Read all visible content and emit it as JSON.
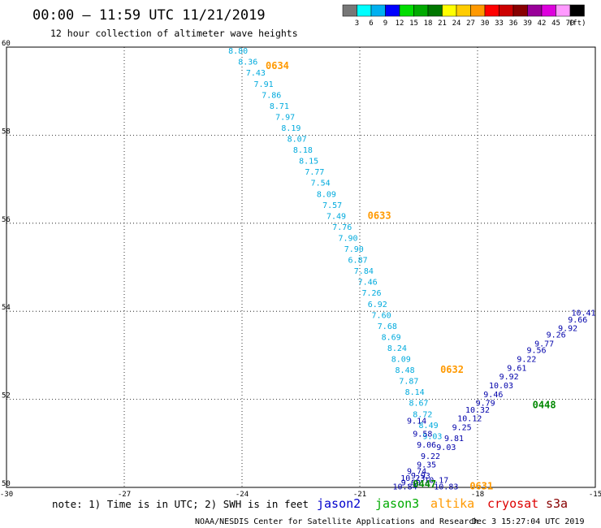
{
  "header": {
    "title": "00:00 – 11:59 UTC 11/21/2019",
    "subtitle": "12 hour collection of altimeter wave heights"
  },
  "colorbar": {
    "unit": "(ft)",
    "labels": [
      "3",
      "6",
      "9",
      "12",
      "15",
      "18",
      "21",
      "24",
      "27",
      "30",
      "33",
      "36",
      "39",
      "42",
      "45",
      "70"
    ],
    "colors": [
      "#777777",
      "#00ffff",
      "#00b0f0",
      "#0000ff",
      "#00dd00",
      "#00aa00",
      "#007700",
      "#ffff00",
      "#ffcc00",
      "#ff9900",
      "#ff0000",
      "#cc0000",
      "#880000",
      "#990099",
      "#dd00dd",
      "#ff99ff",
      "#000000"
    ]
  },
  "footer": {
    "note": "note: 1) Time is in UTC; 2) SWH is in feet",
    "satellites": [
      {
        "name": "jason2",
        "color": "#0000cc"
      },
      {
        "name": "jason3",
        "color": "#00aa00"
      },
      {
        "name": "altika",
        "color": "#ff9900"
      },
      {
        "name": "cryosat",
        "color": "#dd0000"
      },
      {
        "name": "s3a",
        "color": "#880000"
      }
    ],
    "credit": "NOAA/NESDIS Center for Satellite Applications and Research",
    "timestamp": "Dec  3 15:27:04 UTC 2019"
  },
  "chart_data": {
    "type": "scatter",
    "xlim": [
      -30,
      -15
    ],
    "ylim": [
      50,
      60
    ],
    "x_ticks": [
      "-30",
      "-27",
      "-24",
      "-21",
      "-18",
      "-15"
    ],
    "y_ticks": [
      "50",
      "52",
      "54",
      "56",
      "58",
      "60"
    ],
    "grid": "dotted",
    "colors": {
      "track_a": "#00aadd",
      "track_b": "#0000aa",
      "time_altika": "#ff9900",
      "time_jason3": "#008800"
    },
    "tracks": [
      {
        "color_key": "track_a",
        "points": [
          {
            "x": -24.1,
            "y": 59.85,
            "v": "8.80"
          },
          {
            "x": -23.85,
            "y": 59.6,
            "v": "8.36"
          },
          {
            "x": -23.65,
            "y": 59.35,
            "v": "7.43"
          },
          {
            "x": -23.45,
            "y": 59.1,
            "v": "7.91"
          },
          {
            "x": -23.25,
            "y": 58.85,
            "v": "7.86"
          },
          {
            "x": -23.05,
            "y": 58.6,
            "v": "8.71"
          },
          {
            "x": -22.9,
            "y": 58.35,
            "v": "7.97"
          },
          {
            "x": -22.75,
            "y": 58.1,
            "v": "8.19"
          },
          {
            "x": -22.6,
            "y": 57.85,
            "v": "8.07"
          },
          {
            "x": -22.45,
            "y": 57.6,
            "v": "8.18"
          },
          {
            "x": -22.3,
            "y": 57.35,
            "v": "8.15"
          },
          {
            "x": -22.15,
            "y": 57.1,
            "v": "7.77"
          },
          {
            "x": -22.0,
            "y": 56.85,
            "v": "7.54"
          },
          {
            "x": -21.85,
            "y": 56.6,
            "v": "8.09"
          },
          {
            "x": -21.7,
            "y": 56.35,
            "v": "7.57"
          },
          {
            "x": -21.6,
            "y": 56.1,
            "v": "7.49"
          },
          {
            "x": -21.45,
            "y": 55.85,
            "v": "7.76"
          },
          {
            "x": -21.3,
            "y": 55.6,
            "v": "7.90"
          },
          {
            "x": -21.15,
            "y": 55.35,
            "v": "7.90"
          },
          {
            "x": -21.05,
            "y": 55.1,
            "v": "6.87"
          },
          {
            "x": -20.9,
            "y": 54.85,
            "v": "7.84"
          },
          {
            "x": -20.8,
            "y": 54.6,
            "v": "7.46"
          },
          {
            "x": -20.7,
            "y": 54.35,
            "v": "7.26"
          },
          {
            "x": -20.55,
            "y": 54.1,
            "v": "6.92"
          },
          {
            "x": -20.45,
            "y": 53.85,
            "v": "7.60"
          },
          {
            "x": -20.3,
            "y": 53.6,
            "v": "7.68"
          },
          {
            "x": -20.2,
            "y": 53.35,
            "v": "8.69"
          },
          {
            "x": -20.05,
            "y": 53.1,
            "v": "8.24"
          },
          {
            "x": -19.95,
            "y": 52.85,
            "v": "8.09"
          },
          {
            "x": -19.85,
            "y": 52.6,
            "v": "8.48"
          },
          {
            "x": -19.75,
            "y": 52.35,
            "v": "7.87"
          },
          {
            "x": -19.6,
            "y": 52.1,
            "v": "8.14"
          },
          {
            "x": -19.5,
            "y": 51.85,
            "v": "8.67"
          },
          {
            "x": -19.4,
            "y": 51.6,
            "v": "8.72"
          },
          {
            "x": -19.25,
            "y": 51.35,
            "v": "8.49"
          },
          {
            "x": -19.15,
            "y": 51.1,
            "v": "9.03"
          }
        ]
      },
      {
        "color_key": "track_b",
        "points": [
          {
            "x": -19.55,
            "y": 51.45,
            "v": "9.14"
          },
          {
            "x": -19.4,
            "y": 51.15,
            "v": "9.58"
          },
          {
            "x": -19.3,
            "y": 50.9,
            "v": "9.06"
          },
          {
            "x": -19.2,
            "y": 50.65,
            "v": "9.22"
          },
          {
            "x": -19.3,
            "y": 50.45,
            "v": "9.35"
          },
          {
            "x": -19.55,
            "y": 50.3,
            "v": "9.74"
          },
          {
            "x": -19.45,
            "y": 50.2,
            "v": "9.93"
          },
          {
            "x": -19.65,
            "y": 50.15,
            "v": "10.23"
          },
          {
            "x": -19.05,
            "y": 50.1,
            "v": "10.17"
          },
          {
            "x": -19.7,
            "y": 50.05,
            "v": "9.60"
          },
          {
            "x": -19.85,
            "y": 49.95,
            "v": "10.84"
          },
          {
            "x": -18.8,
            "y": 49.95,
            "v": "10.83"
          },
          {
            "x": -18.8,
            "y": 50.85,
            "v": "9.03"
          },
          {
            "x": -18.6,
            "y": 51.05,
            "v": "9.81"
          },
          {
            "x": -18.4,
            "y": 51.3,
            "v": "9.25"
          },
          {
            "x": -18.2,
            "y": 51.5,
            "v": "10.12"
          },
          {
            "x": -18.0,
            "y": 51.7,
            "v": "10.32"
          },
          {
            "x": -17.8,
            "y": 51.85,
            "v": "9.79"
          },
          {
            "x": -17.6,
            "y": 52.05,
            "v": "9.46"
          },
          {
            "x": -17.4,
            "y": 52.25,
            "v": "10.03"
          },
          {
            "x": -17.2,
            "y": 52.45,
            "v": "9.92"
          },
          {
            "x": -17.0,
            "y": 52.65,
            "v": "9.61"
          },
          {
            "x": -16.75,
            "y": 52.85,
            "v": "9.22"
          },
          {
            "x": -16.5,
            "y": 53.05,
            "v": "9.56"
          },
          {
            "x": -16.3,
            "y": 53.2,
            "v": "9.77"
          },
          {
            "x": -16.0,
            "y": 53.4,
            "v": "9.26"
          },
          {
            "x": -15.7,
            "y": 53.55,
            "v": "9.92"
          },
          {
            "x": -15.45,
            "y": 53.75,
            "v": "9.66"
          },
          {
            "x": -15.3,
            "y": 53.9,
            "v": "10.41"
          }
        ]
      }
    ],
    "time_labels": [
      {
        "x": -23.4,
        "y": 59.5,
        "t": "0634",
        "color_key": "time_altika"
      },
      {
        "x": -20.8,
        "y": 56.1,
        "t": "0633",
        "color_key": "time_altika"
      },
      {
        "x": -18.95,
        "y": 52.6,
        "t": "0632",
        "color_key": "time_altika"
      },
      {
        "x": -18.2,
        "y": 49.95,
        "t": "0631",
        "color_key": "time_altika"
      },
      {
        "x": -16.6,
        "y": 51.8,
        "t": "0448",
        "color_key": "time_jason3"
      },
      {
        "x": -19.65,
        "y": 50.0,
        "t": "0447",
        "color_key": "time_jason3"
      }
    ]
  }
}
